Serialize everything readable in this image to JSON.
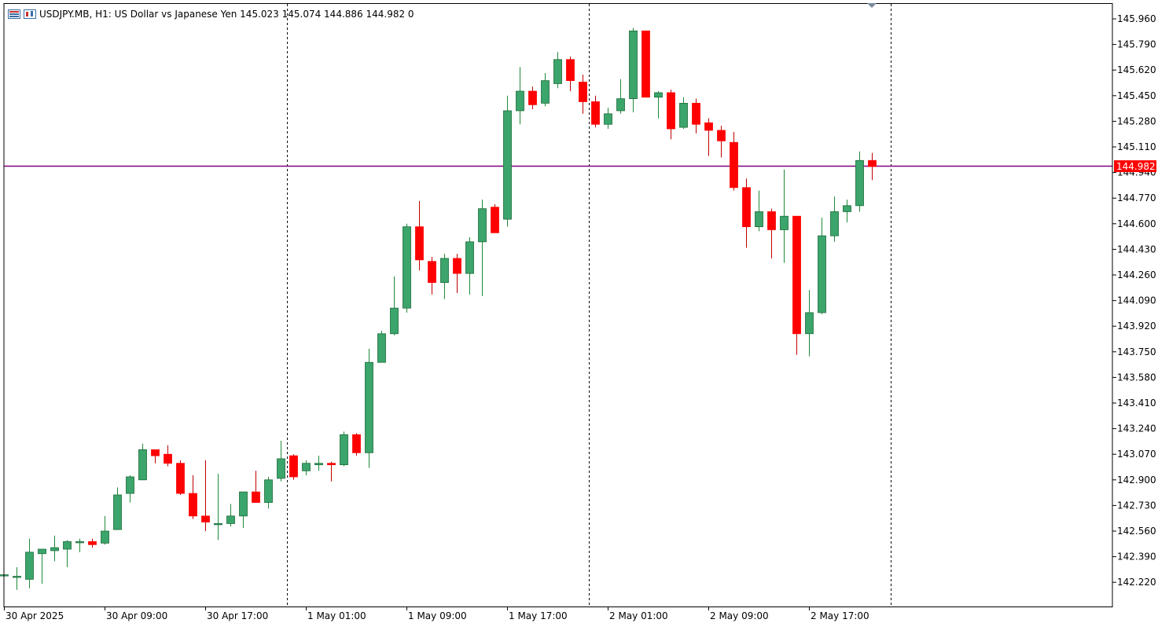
{
  "header": {
    "symbol_line": "USDJPY.MB, H1:  US Dollar vs Japanese Yen  145.023 145.074 144.886 144.982  0"
  },
  "colors": {
    "bull": "#3ba56b",
    "bear": "#ff0000",
    "wick_bull": "#1f8a3a",
    "wick_bear": "#c00000",
    "current_line": "#800080",
    "price_tag": "#ff0000",
    "axis": "#000000",
    "separator": "#000000"
  },
  "chart_data": {
    "type": "candlestick",
    "symbol": "USDJPY.MB",
    "timeframe": "H1",
    "description": "US Dollar vs Japanese Yen",
    "current_price": "144.982",
    "ylim": [
      142.07,
      146.0
    ],
    "y_ticks": [
      "145.960",
      "145.790",
      "145.620",
      "145.450",
      "145.280",
      "145.110",
      "144.940",
      "144.770",
      "144.600",
      "144.430",
      "144.260",
      "144.090",
      "143.920",
      "143.750",
      "143.580",
      "143.410",
      "143.240",
      "143.070",
      "142.900",
      "142.730",
      "142.560",
      "142.390",
      "142.220"
    ],
    "x_labels": [
      "30 Apr 2025",
      "30 Apr 09:00",
      "30 Apr 17:00",
      "1 May 01:00",
      "1 May 09:00",
      "1 May 17:00",
      "2 May 01:00",
      "2 May 09:00",
      "2 May 17:00"
    ],
    "day_separators_after_bar": [
      22.5,
      46.5,
      70.5
    ],
    "candles": [
      {
        "o": 142.27,
        "h": 142.27,
        "l": 142.26,
        "c": 142.27
      },
      {
        "o": 142.26,
        "h": 142.32,
        "l": 142.17,
        "c": 142.26
      },
      {
        "o": 142.24,
        "h": 142.51,
        "l": 142.18,
        "c": 142.42
      },
      {
        "o": 142.41,
        "h": 142.44,
        "l": 142.21,
        "c": 142.44
      },
      {
        "o": 142.43,
        "h": 142.53,
        "l": 142.36,
        "c": 142.45
      },
      {
        "o": 142.44,
        "h": 142.5,
        "l": 142.32,
        "c": 142.49
      },
      {
        "o": 142.49,
        "h": 142.51,
        "l": 142.42,
        "c": 142.49
      },
      {
        "o": 142.49,
        "h": 142.51,
        "l": 142.45,
        "c": 142.47
      },
      {
        "o": 142.48,
        "h": 142.66,
        "l": 142.47,
        "c": 142.56
      },
      {
        "o": 142.57,
        "h": 142.85,
        "l": 142.57,
        "c": 142.8
      },
      {
        "o": 142.81,
        "h": 142.93,
        "l": 142.75,
        "c": 142.92
      },
      {
        "o": 142.9,
        "h": 143.14,
        "l": 142.9,
        "c": 143.1
      },
      {
        "o": 143.1,
        "h": 143.1,
        "l": 143.01,
        "c": 143.06
      },
      {
        "o": 143.07,
        "h": 143.13,
        "l": 142.99,
        "c": 143.01
      },
      {
        "o": 143.01,
        "h": 143.03,
        "l": 142.8,
        "c": 142.81
      },
      {
        "o": 142.81,
        "h": 142.93,
        "l": 142.64,
        "c": 142.66
      },
      {
        "o": 142.66,
        "h": 143.03,
        "l": 142.56,
        "c": 142.62
      },
      {
        "o": 142.61,
        "h": 142.94,
        "l": 142.5,
        "c": 142.61
      },
      {
        "o": 142.61,
        "h": 142.74,
        "l": 142.59,
        "c": 142.66
      },
      {
        "o": 142.66,
        "h": 142.82,
        "l": 142.58,
        "c": 142.82
      },
      {
        "o": 142.82,
        "h": 142.96,
        "l": 142.75,
        "c": 142.75
      },
      {
        "o": 142.75,
        "h": 142.92,
        "l": 142.71,
        "c": 142.9
      },
      {
        "o": 142.91,
        "h": 143.16,
        "l": 142.89,
        "c": 143.04
      },
      {
        "o": 143.06,
        "h": 143.07,
        "l": 142.9,
        "c": 142.92
      },
      {
        "o": 142.96,
        "h": 143.03,
        "l": 142.93,
        "c": 143.01
      },
      {
        "o": 143.0,
        "h": 143.06,
        "l": 142.96,
        "c": 143.01
      },
      {
        "o": 143.01,
        "h": 143.02,
        "l": 142.89,
        "c": 143.0
      },
      {
        "o": 143.0,
        "h": 143.22,
        "l": 142.99,
        "c": 143.2
      },
      {
        "o": 143.2,
        "h": 143.21,
        "l": 143.06,
        "c": 143.08
      },
      {
        "o": 143.08,
        "h": 143.77,
        "l": 142.98,
        "c": 143.68
      },
      {
        "o": 143.68,
        "h": 143.89,
        "l": 143.68,
        "c": 143.87
      },
      {
        "o": 143.87,
        "h": 144.25,
        "l": 143.86,
        "c": 144.04
      },
      {
        "o": 144.04,
        "h": 144.6,
        "l": 144.01,
        "c": 144.58
      },
      {
        "o": 144.58,
        "h": 144.75,
        "l": 144.29,
        "c": 144.36
      },
      {
        "o": 144.35,
        "h": 144.38,
        "l": 144.13,
        "c": 144.21
      },
      {
        "o": 144.21,
        "h": 144.4,
        "l": 144.1,
        "c": 144.37
      },
      {
        "o": 144.37,
        "h": 144.4,
        "l": 144.14,
        "c": 144.27
      },
      {
        "o": 144.27,
        "h": 144.51,
        "l": 144.13,
        "c": 144.48
      },
      {
        "o": 144.48,
        "h": 144.76,
        "l": 144.12,
        "c": 144.7
      },
      {
        "o": 144.71,
        "h": 144.73,
        "l": 144.54,
        "c": 144.54
      },
      {
        "o": 144.63,
        "h": 145.45,
        "l": 144.58,
        "c": 145.35
      },
      {
        "o": 145.35,
        "h": 145.64,
        "l": 145.26,
        "c": 145.48
      },
      {
        "o": 145.48,
        "h": 145.51,
        "l": 145.36,
        "c": 145.39
      },
      {
        "o": 145.4,
        "h": 145.6,
        "l": 145.38,
        "c": 145.55
      },
      {
        "o": 145.53,
        "h": 145.74,
        "l": 145.5,
        "c": 145.69
      },
      {
        "o": 145.69,
        "h": 145.71,
        "l": 145.48,
        "c": 145.55
      },
      {
        "o": 145.54,
        "h": 145.59,
        "l": 145.33,
        "c": 145.41
      },
      {
        "o": 145.41,
        "h": 145.45,
        "l": 145.24,
        "c": 145.26
      },
      {
        "o": 145.26,
        "h": 145.37,
        "l": 145.23,
        "c": 145.33
      },
      {
        "o": 145.35,
        "h": 145.56,
        "l": 145.33,
        "c": 145.43
      },
      {
        "o": 145.43,
        "h": 145.9,
        "l": 145.34,
        "c": 145.88
      },
      {
        "o": 145.88,
        "h": 145.88,
        "l": 145.44,
        "c": 145.44
      },
      {
        "o": 145.44,
        "h": 145.48,
        "l": 145.3,
        "c": 145.47
      },
      {
        "o": 145.47,
        "h": 145.49,
        "l": 145.16,
        "c": 145.23
      },
      {
        "o": 145.24,
        "h": 145.44,
        "l": 145.23,
        "c": 145.4
      },
      {
        "o": 145.4,
        "h": 145.43,
        "l": 145.2,
        "c": 145.26
      },
      {
        "o": 145.27,
        "h": 145.3,
        "l": 145.05,
        "c": 145.22
      },
      {
        "o": 145.22,
        "h": 145.25,
        "l": 145.04,
        "c": 145.15
      },
      {
        "o": 145.14,
        "h": 145.21,
        "l": 144.82,
        "c": 144.84
      },
      {
        "o": 144.84,
        "h": 144.9,
        "l": 144.44,
        "c": 144.58
      },
      {
        "o": 144.58,
        "h": 144.82,
        "l": 144.55,
        "c": 144.68
      },
      {
        "o": 144.68,
        "h": 144.7,
        "l": 144.37,
        "c": 144.56
      },
      {
        "o": 144.56,
        "h": 144.96,
        "l": 144.34,
        "c": 144.65
      },
      {
        "o": 144.65,
        "h": 144.65,
        "l": 143.73,
        "c": 143.87
      },
      {
        "o": 143.87,
        "h": 144.16,
        "l": 143.72,
        "c": 144.01
      },
      {
        "o": 144.01,
        "h": 144.64,
        "l": 144.0,
        "c": 144.52
      },
      {
        "o": 144.52,
        "h": 144.78,
        "l": 144.48,
        "c": 144.68
      },
      {
        "o": 144.68,
        "h": 144.76,
        "l": 144.61,
        "c": 144.72
      },
      {
        "o": 144.72,
        "h": 145.08,
        "l": 144.68,
        "c": 145.02
      },
      {
        "o": 145.02,
        "h": 145.07,
        "l": 144.89,
        "c": 144.98
      }
    ]
  }
}
